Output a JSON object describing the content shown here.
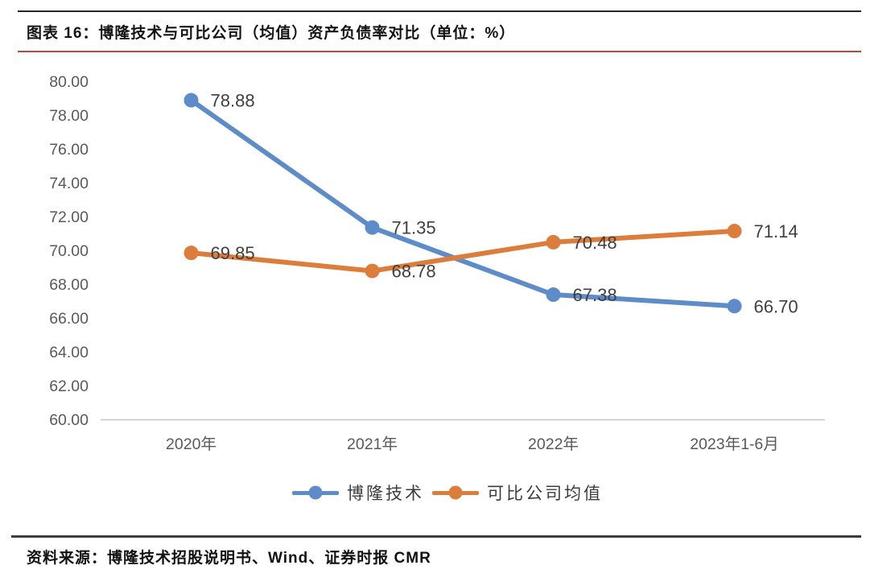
{
  "page": {
    "figure_title": "图表 16：博隆技术与可比公司（均值）资产负债率对比（单位：%）",
    "source_text": "资料来源：博隆技术招股说明书、Wind、证券时报 CMR"
  },
  "colors": {
    "series_blue": "#5E8CC9",
    "series_orange": "#DD7D3B",
    "title_rule_red": "#C4473D",
    "dark_rule": "#2b2b2b",
    "axis_line": "#C6C6C6",
    "tick_label": "#595959",
    "data_label": "#3F3F3F"
  },
  "chart_data": {
    "type": "line",
    "title": "图表 16：博隆技术与可比公司（均值）资产负债率对比（单位：%）",
    "unit": "%",
    "categories": [
      "2020年",
      "2021年",
      "2022年",
      "2023年1-6月"
    ],
    "series": [
      {
        "name": "博隆技术",
        "color": "#5E8CC9",
        "values": [
          78.88,
          71.35,
          67.38,
          66.7
        ]
      },
      {
        "name": "可比公司均值",
        "color": "#DD7D3B",
        "values": [
          69.85,
          68.78,
          70.48,
          71.14
        ]
      }
    ],
    "ylim": [
      60,
      80
    ],
    "ytick_step": 2,
    "ytick_labels": [
      "80.00",
      "78.00",
      "76.00",
      "74.00",
      "72.00",
      "70.00",
      "68.00",
      "66.00",
      "64.00",
      "62.00",
      "60.00"
    ],
    "data_labels_visible": true,
    "grid": false,
    "legend_position": "bottom"
  }
}
